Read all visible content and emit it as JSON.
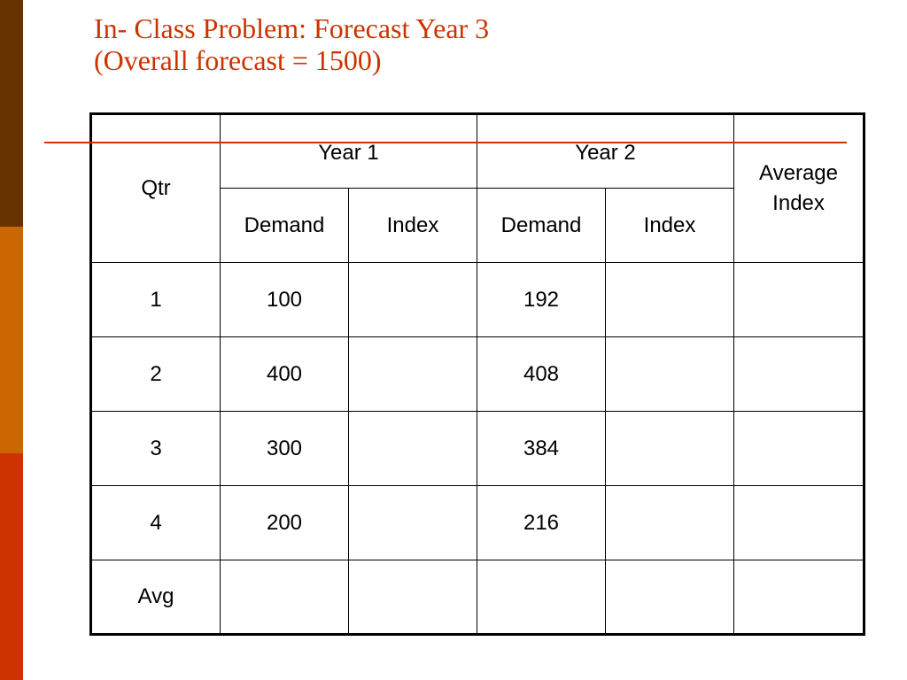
{
  "slide": {
    "title_line1": "In- Class Problem: Forecast Year 3",
    "title_line2": "(Overall forecast = 1500)",
    "accent_colors": [
      "#663300",
      "#cc6600",
      "#cc3300"
    ],
    "title_color": "#cc3300"
  },
  "table": {
    "header": {
      "qtr": "Qtr",
      "year1": "Year 1",
      "year2": "Year 2",
      "average_index": "Average Index",
      "demand": "Demand",
      "index": "Index"
    },
    "rows": [
      {
        "qtr": "1",
        "y1_demand": "100",
        "y1_index": "",
        "y2_demand": "192",
        "y2_index": "",
        "avg_index": ""
      },
      {
        "qtr": "2",
        "y1_demand": "400",
        "y1_index": "",
        "y2_demand": "408",
        "y2_index": "",
        "avg_index": ""
      },
      {
        "qtr": "3",
        "y1_demand": "300",
        "y1_index": "",
        "y2_demand": "384",
        "y2_index": "",
        "avg_index": ""
      },
      {
        "qtr": "4",
        "y1_demand": "200",
        "y1_index": "",
        "y2_demand": "216",
        "y2_index": "",
        "avg_index": ""
      },
      {
        "qtr": "Avg",
        "y1_demand": "",
        "y1_index": "",
        "y2_demand": "",
        "y2_index": "",
        "avg_index": ""
      }
    ]
  }
}
